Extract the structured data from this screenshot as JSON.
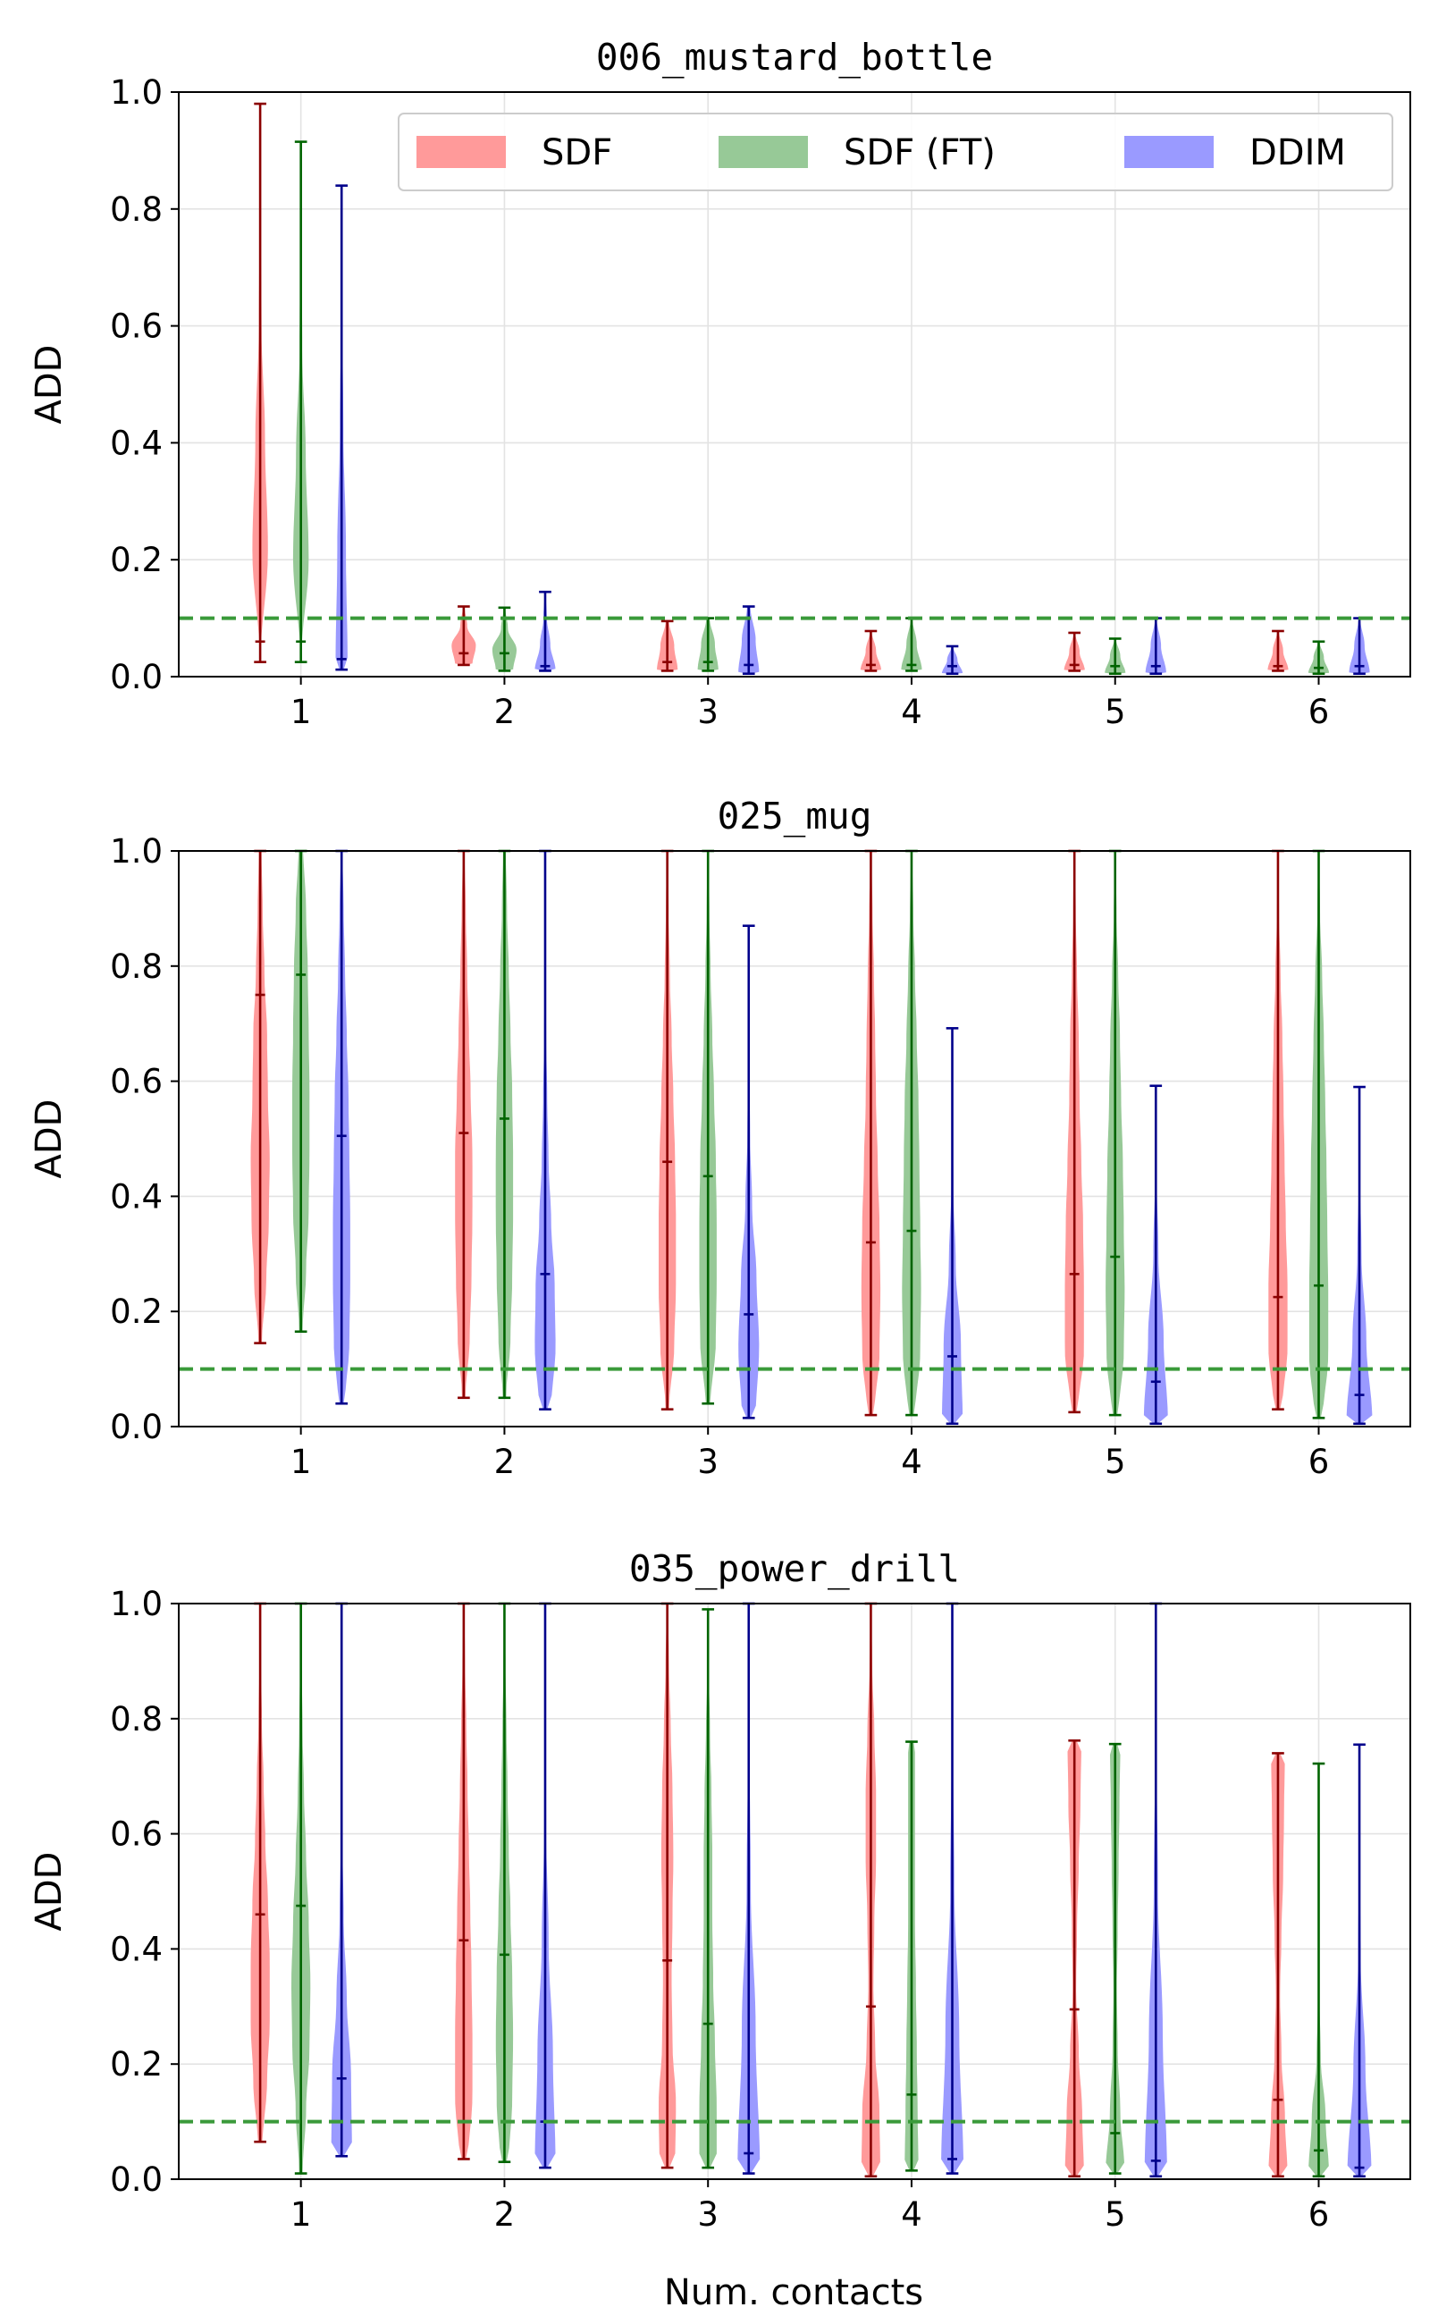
{
  "chart_data": {
    "type": "violin",
    "xlabel": "Num. contacts",
    "ylabel": "ADD",
    "x_ticks": [
      "1",
      "2",
      "3",
      "4",
      "5",
      "6"
    ],
    "y_ticks": [
      "0.0",
      "0.2",
      "0.4",
      "0.6",
      "0.8",
      "1.0"
    ],
    "ylim": [
      0,
      1
    ],
    "threshold": 0.1,
    "legend": [
      {
        "name": "SDF",
        "fill": "#ff9a9a",
        "line": "#8b0000"
      },
      {
        "name": "SDF (FT)",
        "fill": "#97c997",
        "line": "#006400"
      },
      {
        "name": "DDIM",
        "fill": "#9a9aff",
        "line": "#00008b"
      }
    ],
    "panels": [
      {
        "title": "006_mustard_bottle",
        "show_legend": true,
        "series": {
          "SDF": [
            {
              "min": 0.025,
              "max": 0.98,
              "median": 0.06,
              "w": [
                0.02,
                0.45,
                0.28,
                0.08,
                0.03,
                0.0
              ]
            },
            {
              "min": 0.02,
              "max": 0.12,
              "median": 0.04,
              "w": [
                0.5,
                0.7,
                0.2,
                0.05
              ]
            },
            {
              "min": 0.01,
              "max": 0.095,
              "median": 0.025,
              "w": [
                0.6,
                0.4,
                0.1
              ]
            },
            {
              "min": 0.01,
              "max": 0.078,
              "median": 0.02,
              "w": [
                0.6,
                0.3,
                0.05
              ]
            },
            {
              "min": 0.01,
              "max": 0.075,
              "median": 0.02,
              "w": [
                0.6,
                0.3,
                0.05
              ]
            },
            {
              "min": 0.01,
              "max": 0.078,
              "median": 0.018,
              "w": [
                0.6,
                0.3,
                0.05
              ]
            }
          ],
          "SDF (FT)": [
            {
              "min": 0.025,
              "max": 0.915,
              "median": 0.06,
              "w": [
                0.02,
                0.45,
                0.28,
                0.08,
                0.03,
                0.0
              ]
            },
            {
              "min": 0.01,
              "max": 0.118,
              "median": 0.04,
              "w": [
                0.5,
                0.7,
                0.2,
                0.05
              ]
            },
            {
              "min": 0.01,
              "max": 0.1,
              "median": 0.025,
              "w": [
                0.6,
                0.4,
                0.1
              ]
            },
            {
              "min": 0.01,
              "max": 0.1,
              "median": 0.02,
              "w": [
                0.6,
                0.3,
                0.05
              ]
            },
            {
              "min": 0.005,
              "max": 0.065,
              "median": 0.018,
              "w": [
                0.6,
                0.3,
                0.05
              ]
            },
            {
              "min": 0.005,
              "max": 0.06,
              "median": 0.015,
              "w": [
                0.6,
                0.3,
                0.05
              ]
            }
          ],
          "DDIM": [
            {
              "min": 0.012,
              "max": 0.84,
              "median": 0.03,
              "w": [
                0.35,
                0.25,
                0.1,
                0.03,
                0.0
              ]
            },
            {
              "min": 0.01,
              "max": 0.145,
              "median": 0.018,
              "w": [
                0.6,
                0.3,
                0.1,
                0.03
              ]
            },
            {
              "min": 0.005,
              "max": 0.12,
              "median": 0.02,
              "w": [
                0.6,
                0.4,
                0.1
              ]
            },
            {
              "min": 0.005,
              "max": 0.052,
              "median": 0.018,
              "w": [
                0.6,
                0.3,
                0.05
              ]
            },
            {
              "min": 0.005,
              "max": 0.1,
              "median": 0.018,
              "w": [
                0.6,
                0.3,
                0.05
              ]
            },
            {
              "min": 0.005,
              "max": 0.1,
              "median": 0.018,
              "w": [
                0.6,
                0.3,
                0.05
              ]
            }
          ]
        }
      },
      {
        "title": "025_mug",
        "show_legend": false,
        "series": {
          "SDF": [
            {
              "min": 0.145,
              "max": 1.0,
              "median": 0.75,
              "w": [
                0.1,
                0.35,
                0.5,
                0.55,
                0.45,
                0.4,
                0.25,
                0.15,
                0.08
              ]
            },
            {
              "min": 0.05,
              "max": 1.0,
              "median": 0.51,
              "w": [
                0.1,
                0.35,
                0.45,
                0.5,
                0.5,
                0.4,
                0.3,
                0.2,
                0.12,
                0.05
              ]
            },
            {
              "min": 0.03,
              "max": 1.0,
              "median": 0.46,
              "w": [
                0.1,
                0.4,
                0.5,
                0.5,
                0.45,
                0.35,
                0.25,
                0.15,
                0.08,
                0.03
              ]
            },
            {
              "min": 0.02,
              "max": 1.0,
              "median": 0.32,
              "w": [
                0.2,
                0.5,
                0.55,
                0.5,
                0.4,
                0.3,
                0.25,
                0.18,
                0.1,
                0.03
              ]
            },
            {
              "min": 0.025,
              "max": 1.0,
              "median": 0.265,
              "w": [
                0.2,
                0.55,
                0.55,
                0.5,
                0.4,
                0.3,
                0.25,
                0.15,
                0.08,
                0.02
              ]
            },
            {
              "min": 0.03,
              "max": 1.0,
              "median": 0.225,
              "w": [
                0.25,
                0.55,
                0.55,
                0.45,
                0.38,
                0.32,
                0.25,
                0.15,
                0.06,
                0.02
              ]
            }
          ],
          "SDF (FT)": [
            {
              "min": 0.165,
              "max": 1.0,
              "median": 0.785,
              "w": [
                0.1,
                0.3,
                0.45,
                0.5,
                0.5,
                0.45,
                0.4,
                0.3,
                0.15
              ]
            },
            {
              "min": 0.05,
              "max": 1.0,
              "median": 0.535,
              "w": [
                0.1,
                0.35,
                0.45,
                0.5,
                0.5,
                0.45,
                0.35,
                0.25,
                0.15,
                0.08
              ]
            },
            {
              "min": 0.04,
              "max": 1.0,
              "median": 0.435,
              "w": [
                0.15,
                0.45,
                0.5,
                0.5,
                0.45,
                0.35,
                0.25,
                0.15,
                0.08,
                0.03
              ]
            },
            {
              "min": 0.02,
              "max": 1.0,
              "median": 0.34,
              "w": [
                0.2,
                0.5,
                0.55,
                0.5,
                0.45,
                0.4,
                0.3,
                0.2,
                0.1,
                0.03
              ]
            },
            {
              "min": 0.02,
              "max": 1.0,
              "median": 0.295,
              "w": [
                0.2,
                0.5,
                0.55,
                0.5,
                0.45,
                0.35,
                0.28,
                0.18,
                0.08,
                0.02
              ]
            },
            {
              "min": 0.015,
              "max": 1.0,
              "median": 0.245,
              "w": [
                0.25,
                0.55,
                0.55,
                0.5,
                0.45,
                0.38,
                0.3,
                0.2,
                0.08,
                0.02
              ]
            }
          ],
          "DDIM": [
            {
              "min": 0.04,
              "max": 1.0,
              "median": 0.505,
              "w": [
                0.2,
                0.45,
                0.5,
                0.5,
                0.45,
                0.4,
                0.3,
                0.2,
                0.12,
                0.05
              ]
            },
            {
              "min": 0.03,
              "max": 1.0,
              "median": 0.265,
              "w": [
                0.35,
                0.6,
                0.55,
                0.35,
                0.2,
                0.12,
                0.06,
                0.03,
                0.02,
                0.01
              ]
            },
            {
              "min": 0.015,
              "max": 0.87,
              "median": 0.195,
              "w": [
                0.4,
                0.6,
                0.45,
                0.2,
                0.08,
                0.03,
                0.01,
                0.0
              ]
            },
            {
              "min": 0.005,
              "max": 0.692,
              "median": 0.122,
              "w": [
                0.6,
                0.5,
                0.2,
                0.06,
                0.02,
                0.0
              ]
            },
            {
              "min": 0.005,
              "max": 0.592,
              "median": 0.078,
              "w": [
                0.7,
                0.45,
                0.15,
                0.04,
                0.0
              ]
            },
            {
              "min": 0.005,
              "max": 0.59,
              "median": 0.055,
              "w": [
                0.75,
                0.4,
                0.12,
                0.03,
                0.0
              ]
            }
          ]
        }
      },
      {
        "title": "035_power_drill",
        "show_legend": false,
        "series": {
          "SDF": [
            {
              "min": 0.065,
              "max": 1.0,
              "median": 0.46,
              "w": [
                0.15,
                0.4,
                0.55,
                0.55,
                0.45,
                0.3,
                0.2,
                0.1,
                0.05,
                0.02
              ]
            },
            {
              "min": 0.035,
              "max": 1.0,
              "median": 0.415,
              "w": [
                0.25,
                0.5,
                0.5,
                0.45,
                0.38,
                0.3,
                0.22,
                0.15,
                0.08,
                0.03
              ]
            },
            {
              "min": 0.02,
              "max": 1.0,
              "median": 0.38,
              "w": [
                0.45,
                0.5,
                0.3,
                0.25,
                0.3,
                0.35,
                0.3,
                0.2,
                0.1,
                0.03
              ]
            },
            {
              "min": 0.005,
              "max": 1.0,
              "median": 0.3,
              "w": [
                0.55,
                0.5,
                0.25,
                0.15,
                0.2,
                0.3,
                0.3,
                0.2,
                0.08,
                0.02
              ]
            },
            {
              "min": 0.005,
              "max": 0.762,
              "median": 0.295,
              "w": [
                0.55,
                0.45,
                0.25,
                0.1,
                0.15,
                0.25,
                0.35,
                0.4
              ]
            },
            {
              "min": 0.005,
              "max": 0.74,
              "median": 0.138,
              "w": [
                0.55,
                0.4,
                0.2,
                0.12,
                0.2,
                0.3,
                0.35,
                0.4
              ]
            }
          ],
          "SDF (FT)": [
            {
              "min": 0.01,
              "max": 1.0,
              "median": 0.475,
              "w": [
                0.1,
                0.3,
                0.5,
                0.55,
                0.45,
                0.3,
                0.18,
                0.1,
                0.05,
                0.02
              ]
            },
            {
              "min": 0.03,
              "max": 1.0,
              "median": 0.39,
              "w": [
                0.25,
                0.45,
                0.5,
                0.45,
                0.35,
                0.25,
                0.18,
                0.12,
                0.06,
                0.02
              ]
            },
            {
              "min": 0.02,
              "max": 0.99,
              "median": 0.27,
              "w": [
                0.5,
                0.5,
                0.4,
                0.3,
                0.25,
                0.25,
                0.2,
                0.12,
                0.05,
                0.02
              ]
            },
            {
              "min": 0.015,
              "max": 0.76,
              "median": 0.147,
              "w": [
                0.4,
                0.35,
                0.3,
                0.25,
                0.2,
                0.2,
                0.2,
                0.2
              ]
            },
            {
              "min": 0.01,
              "max": 0.756,
              "median": 0.08,
              "w": [
                0.55,
                0.3,
                0.15,
                0.1,
                0.15,
                0.2,
                0.25,
                0.3
              ]
            },
            {
              "min": 0.005,
              "max": 0.722,
              "median": 0.05,
              "w": [
                0.6,
                0.4,
                0.12,
                0.05,
                0.03,
                0.02,
                0.02,
                0.02
              ]
            }
          ],
          "DDIM": [
            {
              "min": 0.04,
              "max": 1.0,
              "median": 0.175,
              "w": [
                0.6,
                0.55,
                0.3,
                0.12,
                0.05,
                0.02,
                0.01,
                0.0
              ]
            },
            {
              "min": 0.02,
              "max": 1.0,
              "median": 0.1,
              "w": [
                0.6,
                0.45,
                0.2,
                0.06,
                0.02,
                0.0
              ]
            },
            {
              "min": 0.01,
              "max": 1.0,
              "median": 0.045,
              "w": [
                0.65,
                0.4,
                0.12,
                0.04,
                0.0
              ]
            },
            {
              "min": 0.01,
              "max": 1.0,
              "median": 0.035,
              "w": [
                0.65,
                0.4,
                0.12,
                0.04,
                0.0
              ]
            },
            {
              "min": 0.005,
              "max": 1.0,
              "median": 0.032,
              "w": [
                0.65,
                0.4,
                0.12,
                0.04,
                0.0
              ]
            },
            {
              "min": 0.005,
              "max": 0.755,
              "median": 0.02,
              "w": [
                0.7,
                0.35,
                0.08,
                0.02,
                0.0
              ]
            }
          ]
        }
      }
    ]
  }
}
